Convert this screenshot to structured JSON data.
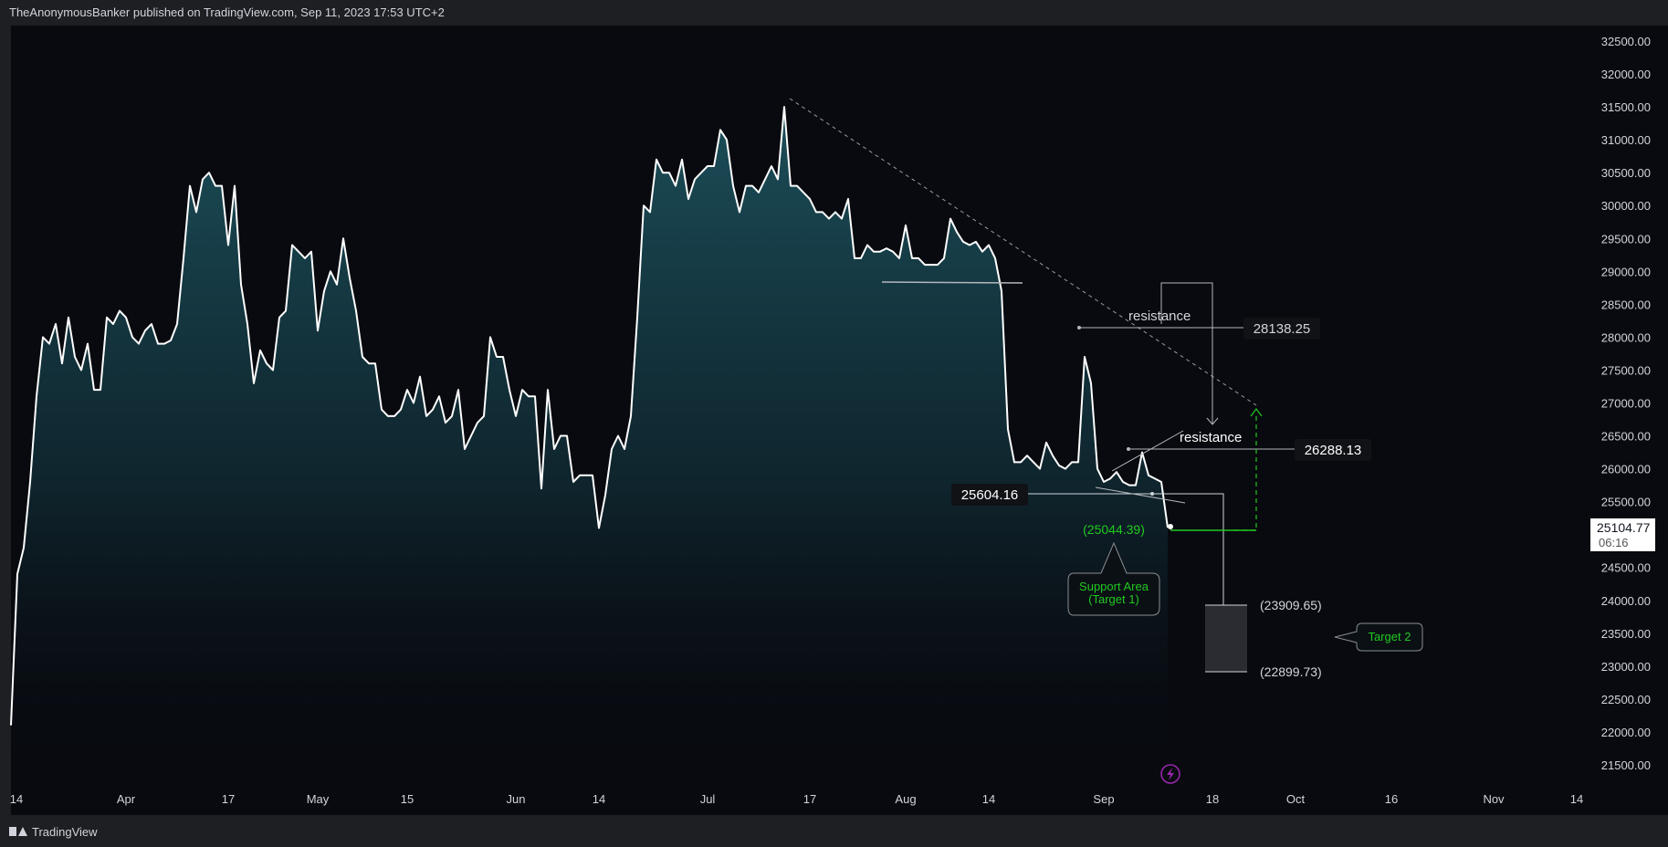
{
  "header": {
    "published_by": "TheAnonymousBanker published on TradingView.com, Sep 11, 2023 17:53 UTC+2"
  },
  "footer": {
    "brand": "TradingView"
  },
  "colors": {
    "price_line": "#ffffff",
    "fill_top": "#1f5a66",
    "annotation_green": "#21c921",
    "axis_text": "#d1d4dc",
    "last_price_box": "#ffffff"
  },
  "chart_data": {
    "type": "area",
    "grid": false,
    "ylim": [
      21300,
      32700
    ],
    "y_ticks": [
      21500,
      22000,
      22500,
      23000,
      23500,
      24000,
      24500,
      25000,
      25500,
      26000,
      26500,
      27000,
      27500,
      28000,
      28500,
      29000,
      29500,
      30000,
      30500,
      31000,
      31500,
      32000,
      32500
    ],
    "y_tick_labels": [
      "21500.00",
      "22000.00",
      "22500.00",
      "23000.00",
      "23500.00",
      "24000.00",
      "24500.00",
      "25000.00",
      "25500.00",
      "26000.00",
      "26500.00",
      "27000.00",
      "27500.00",
      "28000.00",
      "28500.00",
      "29000.00",
      "29500.00",
      "30000.00",
      "30500.00",
      "31000.00",
      "31500.00",
      "32000.00",
      "32500.00"
    ],
    "xlim": [
      "2023-03-14",
      "2023-11-14"
    ],
    "x_ticks": [
      {
        "date": "2023-03-14",
        "label": "14"
      },
      {
        "date": "2023-04-01",
        "label": "Apr"
      },
      {
        "date": "2023-04-17",
        "label": "17"
      },
      {
        "date": "2023-05-01",
        "label": "May"
      },
      {
        "date": "2023-05-15",
        "label": "15"
      },
      {
        "date": "2023-06-01",
        "label": "Jun"
      },
      {
        "date": "2023-06-14",
        "label": "14"
      },
      {
        "date": "2023-07-01",
        "label": "Jul"
      },
      {
        "date": "2023-07-17",
        "label": "17"
      },
      {
        "date": "2023-08-01",
        "label": "Aug"
      },
      {
        "date": "2023-08-14",
        "label": "14"
      },
      {
        "date": "2023-09-01",
        "label": "Sep"
      },
      {
        "date": "2023-09-18",
        "label": "18"
      },
      {
        "date": "2023-10-01",
        "label": "Oct"
      },
      {
        "date": "2023-10-16",
        "label": "16"
      },
      {
        "date": "2023-11-01",
        "label": "Nov"
      },
      {
        "date": "2023-11-14",
        "label": "14"
      }
    ],
    "series": [
      {
        "points": [
          [
            "2023-03-14",
            22100
          ],
          [
            "2023-03-15",
            24400
          ],
          [
            "2023-03-16",
            24800
          ],
          [
            "2023-03-17",
            25800
          ],
          [
            "2023-03-18",
            27100
          ],
          [
            "2023-03-19",
            28000
          ],
          [
            "2023-03-20",
            27900
          ],
          [
            "2023-03-21",
            28200
          ],
          [
            "2023-03-22",
            27600
          ],
          [
            "2023-03-23",
            28300
          ],
          [
            "2023-03-24",
            27700
          ],
          [
            "2023-03-25",
            27500
          ],
          [
            "2023-03-26",
            27900
          ],
          [
            "2023-03-27",
            27200
          ],
          [
            "2023-03-28",
            27200
          ],
          [
            "2023-03-29",
            28300
          ],
          [
            "2023-03-30",
            28200
          ],
          [
            "2023-03-31",
            28400
          ],
          [
            "2023-04-01",
            28300
          ],
          [
            "2023-04-02",
            28000
          ],
          [
            "2023-04-03",
            27900
          ],
          [
            "2023-04-04",
            28100
          ],
          [
            "2023-04-05",
            28200
          ],
          [
            "2023-04-06",
            27900
          ],
          [
            "2023-04-07",
            27900
          ],
          [
            "2023-04-08",
            27950
          ],
          [
            "2023-04-09",
            28200
          ],
          [
            "2023-04-10",
            29200
          ],
          [
            "2023-04-11",
            30300
          ],
          [
            "2023-04-12",
            29900
          ],
          [
            "2023-04-13",
            30400
          ],
          [
            "2023-04-14",
            30500
          ],
          [
            "2023-04-15",
            30300
          ],
          [
            "2023-04-16",
            30300
          ],
          [
            "2023-04-17",
            29400
          ],
          [
            "2023-04-18",
            30300
          ],
          [
            "2023-04-19",
            28800
          ],
          [
            "2023-04-20",
            28200
          ],
          [
            "2023-04-21",
            27300
          ],
          [
            "2023-04-22",
            27800
          ],
          [
            "2023-04-23",
            27600
          ],
          [
            "2023-04-24",
            27500
          ],
          [
            "2023-04-25",
            28300
          ],
          [
            "2023-04-26",
            28400
          ],
          [
            "2023-04-27",
            29400
          ],
          [
            "2023-04-28",
            29300
          ],
          [
            "2023-04-29",
            29200
          ],
          [
            "2023-04-30",
            29300
          ],
          [
            "2023-05-01",
            28100
          ],
          [
            "2023-05-02",
            28700
          ],
          [
            "2023-05-03",
            29000
          ],
          [
            "2023-05-04",
            28800
          ],
          [
            "2023-05-05",
            29500
          ],
          [
            "2023-05-06",
            28900
          ],
          [
            "2023-05-07",
            28400
          ],
          [
            "2023-05-08",
            27700
          ],
          [
            "2023-05-09",
            27600
          ],
          [
            "2023-05-10",
            27600
          ],
          [
            "2023-05-11",
            26900
          ],
          [
            "2023-05-12",
            26800
          ],
          [
            "2023-05-13",
            26800
          ],
          [
            "2023-05-14",
            26900
          ],
          [
            "2023-05-15",
            27200
          ],
          [
            "2023-05-16",
            27000
          ],
          [
            "2023-05-17",
            27400
          ],
          [
            "2023-05-18",
            26800
          ],
          [
            "2023-05-19",
            26900
          ],
          [
            "2023-05-20",
            27100
          ],
          [
            "2023-05-21",
            26700
          ],
          [
            "2023-05-22",
            26800
          ],
          [
            "2023-05-23",
            27200
          ],
          [
            "2023-05-24",
            26300
          ],
          [
            "2023-05-25",
            26500
          ],
          [
            "2023-05-26",
            26700
          ],
          [
            "2023-05-27",
            26800
          ],
          [
            "2023-05-28",
            28000
          ],
          [
            "2023-05-29",
            27700
          ],
          [
            "2023-05-30",
            27700
          ],
          [
            "2023-05-31",
            27200
          ],
          [
            "2023-06-01",
            26800
          ],
          [
            "2023-06-02",
            27200
          ],
          [
            "2023-06-03",
            27100
          ],
          [
            "2023-06-04",
            27100
          ],
          [
            "2023-06-05",
            25700
          ],
          [
            "2023-06-06",
            27200
          ],
          [
            "2023-06-07",
            26300
          ],
          [
            "2023-06-08",
            26500
          ],
          [
            "2023-06-09",
            26500
          ],
          [
            "2023-06-10",
            25800
          ],
          [
            "2023-06-11",
            25900
          ],
          [
            "2023-06-12",
            25900
          ],
          [
            "2023-06-13",
            25900
          ],
          [
            "2023-06-14",
            25100
          ],
          [
            "2023-06-15",
            25600
          ],
          [
            "2023-06-16",
            26300
          ],
          [
            "2023-06-17",
            26500
          ],
          [
            "2023-06-18",
            26300
          ],
          [
            "2023-06-19",
            26800
          ],
          [
            "2023-06-20",
            28300
          ],
          [
            "2023-06-21",
            30000
          ],
          [
            "2023-06-22",
            29900
          ],
          [
            "2023-06-23",
            30700
          ],
          [
            "2023-06-24",
            30500
          ],
          [
            "2023-06-25",
            30500
          ],
          [
            "2023-06-26",
            30300
          ],
          [
            "2023-06-27",
            30700
          ],
          [
            "2023-06-28",
            30100
          ],
          [
            "2023-06-29",
            30400
          ],
          [
            "2023-06-30",
            30500
          ],
          [
            "2023-07-01",
            30600
          ],
          [
            "2023-07-02",
            30600
          ],
          [
            "2023-07-03",
            31150
          ],
          [
            "2023-07-04",
            31000
          ],
          [
            "2023-07-05",
            30300
          ],
          [
            "2023-07-06",
            29900
          ],
          [
            "2023-07-07",
            30300
          ],
          [
            "2023-07-08",
            30300
          ],
          [
            "2023-07-09",
            30200
          ],
          [
            "2023-07-10",
            30400
          ],
          [
            "2023-07-11",
            30600
          ],
          [
            "2023-07-12",
            30400
          ],
          [
            "2023-07-13",
            31500
          ],
          [
            "2023-07-14",
            30300
          ],
          [
            "2023-07-15",
            30300
          ],
          [
            "2023-07-16",
            30200
          ],
          [
            "2023-07-17",
            30100
          ],
          [
            "2023-07-18",
            29900
          ],
          [
            "2023-07-19",
            29900
          ],
          [
            "2023-07-20",
            29800
          ],
          [
            "2023-07-21",
            29900
          ],
          [
            "2023-07-22",
            29800
          ],
          [
            "2023-07-23",
            30100
          ],
          [
            "2023-07-24",
            29200
          ],
          [
            "2023-07-25",
            29200
          ],
          [
            "2023-07-26",
            29400
          ],
          [
            "2023-07-27",
            29300
          ],
          [
            "2023-07-28",
            29300
          ],
          [
            "2023-07-29",
            29350
          ],
          [
            "2023-07-30",
            29300
          ],
          [
            "2023-07-31",
            29200
          ],
          [
            "2023-08-01",
            29700
          ],
          [
            "2023-08-02",
            29200
          ],
          [
            "2023-08-03",
            29200
          ],
          [
            "2023-08-04",
            29100
          ],
          [
            "2023-08-05",
            29100
          ],
          [
            "2023-08-06",
            29100
          ],
          [
            "2023-08-07",
            29200
          ],
          [
            "2023-08-08",
            29800
          ],
          [
            "2023-08-09",
            29600
          ],
          [
            "2023-08-10",
            29450
          ],
          [
            "2023-08-11",
            29400
          ],
          [
            "2023-08-12",
            29450
          ],
          [
            "2023-08-13",
            29300
          ],
          [
            "2023-08-14",
            29400
          ],
          [
            "2023-08-15",
            29200
          ],
          [
            "2023-08-16",
            28700
          ],
          [
            "2023-08-17",
            26600
          ],
          [
            "2023-08-18",
            26100
          ],
          [
            "2023-08-19",
            26100
          ],
          [
            "2023-08-20",
            26200
          ],
          [
            "2023-08-21",
            26100
          ],
          [
            "2023-08-22",
            26000
          ],
          [
            "2023-08-23",
            26400
          ],
          [
            "2023-08-24",
            26200
          ],
          [
            "2023-08-25",
            26050
          ],
          [
            "2023-08-26",
            26000
          ],
          [
            "2023-08-27",
            26100
          ],
          [
            "2023-08-28",
            26100
          ],
          [
            "2023-08-29",
            27700
          ],
          [
            "2023-08-30",
            27300
          ],
          [
            "2023-08-31",
            26000
          ],
          [
            "2023-09-01",
            25800
          ],
          [
            "2023-09-02",
            25850
          ],
          [
            "2023-09-03",
            25950
          ],
          [
            "2023-09-04",
            25800
          ],
          [
            "2023-09-05",
            25750
          ],
          [
            "2023-09-06",
            25750
          ],
          [
            "2023-09-07",
            26250
          ],
          [
            "2023-09-08",
            25900
          ],
          [
            "2023-09-09",
            25850
          ],
          [
            "2023-09-10",
            25800
          ],
          [
            "2023-09-11",
            25104.77
          ]
        ]
      }
    ],
    "last_price": {
      "value": "25104.77",
      "countdown": "06:16"
    },
    "annotations": {
      "resistance_upper_label": "resistance",
      "resistance_upper_value": "28138.25",
      "resistance_lower_label": "resistance",
      "resistance_lower_value": "26288.13",
      "support_value": "25604.16",
      "target1_value": "(25044.39)",
      "target1_label_line1": "Support Area",
      "target1_label_line2": "(Target 1)",
      "target2_top_value": "(23909.65)",
      "target2_bottom_value": "(22899.73)",
      "target2_label": "Target 2"
    }
  }
}
